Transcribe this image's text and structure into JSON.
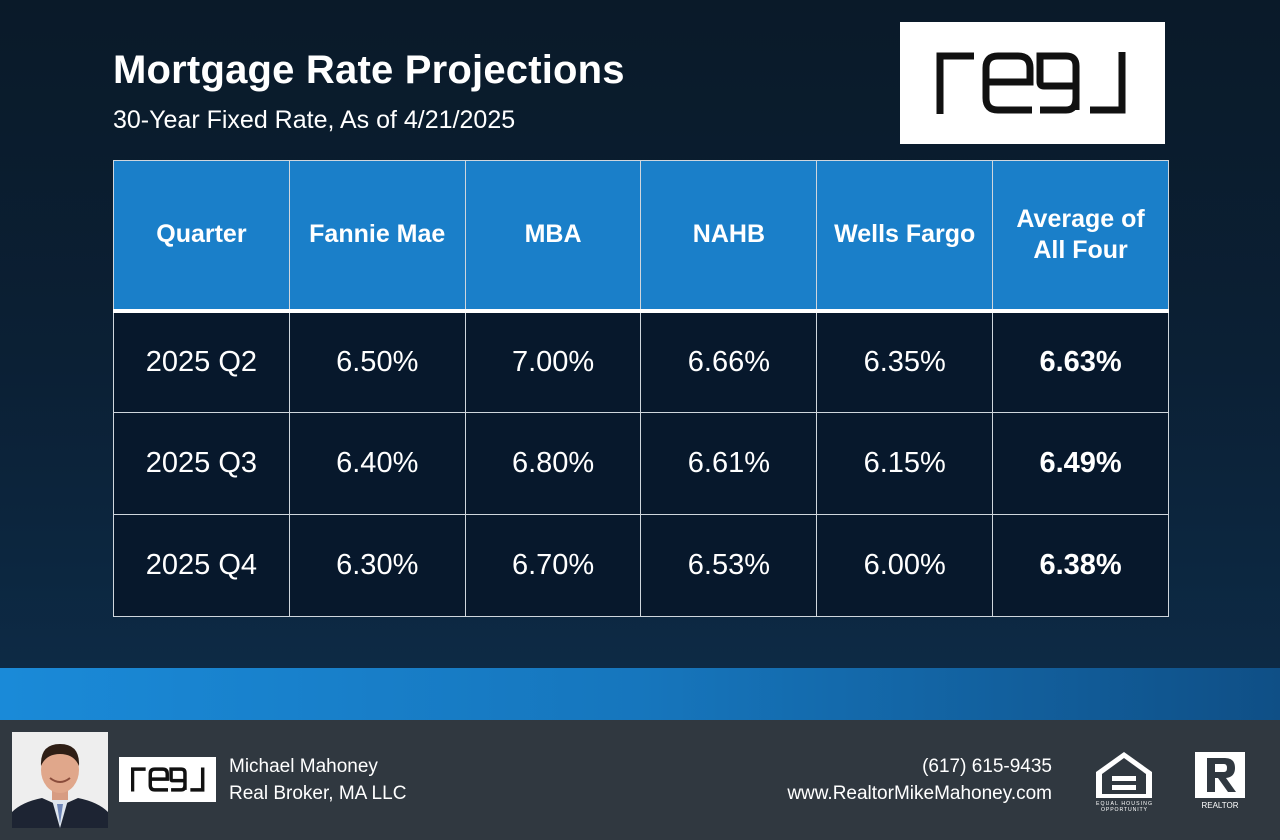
{
  "header": {
    "title": "Mortgage Rate Projections",
    "subtitle": "30-Year Fixed Rate, As of 4/21/2025",
    "logo_text": "real"
  },
  "table": {
    "columns": [
      "Quarter",
      "Fannie Mae",
      "MBA",
      "NAHB",
      "Wells Fargo",
      "Average of All Four"
    ],
    "rows": [
      [
        "2025 Q2",
        "6.50%",
        "7.00%",
        "6.66%",
        "6.35%",
        "6.63%"
      ],
      [
        "2025 Q3",
        "6.40%",
        "6.80%",
        "6.61%",
        "6.15%",
        "6.49%"
      ],
      [
        "2025 Q4",
        "6.30%",
        "6.70%",
        "6.53%",
        "6.00%",
        "6.38%"
      ]
    ]
  },
  "footer": {
    "agent_name": "Michael Mahoney",
    "agent_company": "Real Broker, MA LLC",
    "phone": "(617) 615-9435",
    "website": "www.RealtorMikeMahoney.com",
    "logo_text": "real",
    "eho_text": "EQUAL HOUSING OPPORTUNITY",
    "realtor_text": "REALTOR"
  },
  "colors": {
    "header_cell": "#1a7fc9",
    "body_cell": "#07182c",
    "footer": "#303840",
    "band": "#1a8ad8"
  },
  "icons": [
    "real-logo",
    "agent-photo",
    "equal-housing-icon",
    "realtor-icon"
  ]
}
